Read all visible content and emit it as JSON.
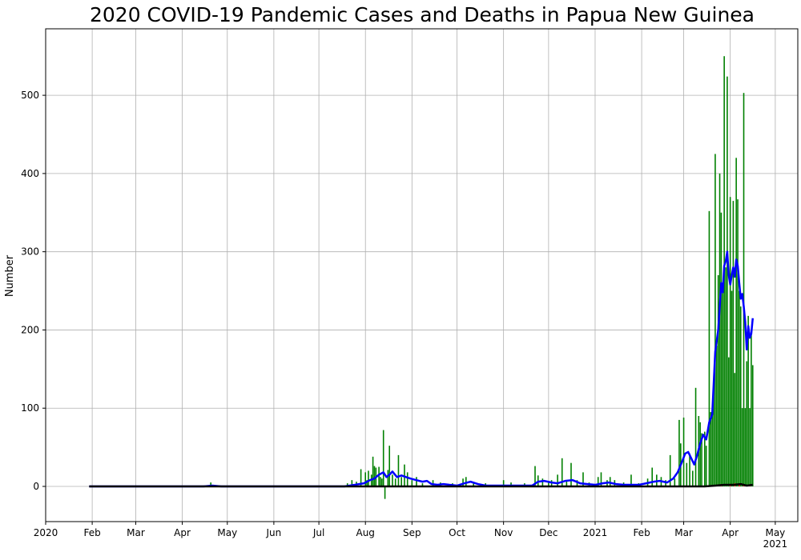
{
  "chart_data": {
    "type": "bar",
    "title": "2020 COVID-19 Pandemic Cases and Deaths in Papua New Guinea",
    "xlabel": "",
    "ylabel": "Number",
    "xlim": [
      "2020-01-01",
      "2021-05-16"
    ],
    "ylim": [
      -45,
      585
    ],
    "grid": true,
    "x_ticks": [
      {
        "date": "2020-01-01",
        "label": "2020"
      },
      {
        "date": "2020-02-01",
        "label": "Feb"
      },
      {
        "date": "2020-03-01",
        "label": "Mar"
      },
      {
        "date": "2020-04-01",
        "label": "Apr"
      },
      {
        "date": "2020-05-01",
        "label": "May"
      },
      {
        "date": "2020-06-01",
        "label": "Jun"
      },
      {
        "date": "2020-07-01",
        "label": "Jul"
      },
      {
        "date": "2020-08-01",
        "label": "Aug"
      },
      {
        "date": "2020-09-01",
        "label": "Sep"
      },
      {
        "date": "2020-10-01",
        "label": "Oct"
      },
      {
        "date": "2020-11-01",
        "label": "Nov"
      },
      {
        "date": "2020-12-01",
        "label": "Dec"
      },
      {
        "date": "2021-01-01",
        "label": "2021"
      },
      {
        "date": "2021-02-01",
        "label": "Feb"
      },
      {
        "date": "2021-03-01",
        "label": "Mar"
      },
      {
        "date": "2021-04-01",
        "label": "Apr"
      },
      {
        "date": "2021-05-01",
        "label": "May",
        "sublabel": "2021"
      }
    ],
    "y_ticks": [
      0,
      100,
      200,
      300,
      400,
      500
    ],
    "series": [
      {
        "kind": "bar",
        "color": "#008000",
        "points": [
          [
            "2020-04-20",
            5
          ],
          [
            "2020-07-20",
            4
          ],
          [
            "2020-07-23",
            8
          ],
          [
            "2020-07-26",
            6
          ],
          [
            "2020-07-29",
            22
          ],
          [
            "2020-08-01",
            18
          ],
          [
            "2020-08-02",
            8
          ],
          [
            "2020-08-03",
            20
          ],
          [
            "2020-08-05",
            15
          ],
          [
            "2020-08-06",
            38
          ],
          [
            "2020-08-07",
            26
          ],
          [
            "2020-08-08",
            24
          ],
          [
            "2020-08-10",
            25
          ],
          [
            "2020-08-11",
            12
          ],
          [
            "2020-08-12",
            10
          ],
          [
            "2020-08-13",
            72
          ],
          [
            "2020-08-14",
            -16
          ],
          [
            "2020-08-16",
            21
          ],
          [
            "2020-08-17",
            52
          ],
          [
            "2020-08-19",
            15
          ],
          [
            "2020-08-21",
            10
          ],
          [
            "2020-08-23",
            40
          ],
          [
            "2020-08-25",
            12
          ],
          [
            "2020-08-27",
            28
          ],
          [
            "2020-08-29",
            18
          ],
          [
            "2020-09-01",
            8
          ],
          [
            "2020-09-04",
            12
          ],
          [
            "2020-09-08",
            4
          ],
          [
            "2020-09-15",
            8
          ],
          [
            "2020-09-20",
            5
          ],
          [
            "2020-09-28",
            4
          ],
          [
            "2020-10-05",
            10
          ],
          [
            "2020-10-07",
            12
          ],
          [
            "2020-10-12",
            5
          ],
          [
            "2020-10-20",
            4
          ],
          [
            "2020-11-01",
            8
          ],
          [
            "2020-11-06",
            5
          ],
          [
            "2020-11-15",
            4
          ],
          [
            "2020-11-22",
            26
          ],
          [
            "2020-11-24",
            14
          ],
          [
            "2020-11-27",
            10
          ],
          [
            "2020-12-01",
            6
          ],
          [
            "2020-12-03",
            8
          ],
          [
            "2020-12-07",
            15
          ],
          [
            "2020-12-10",
            36
          ],
          [
            "2020-12-13",
            8
          ],
          [
            "2020-12-16",
            30
          ],
          [
            "2020-12-20",
            8
          ],
          [
            "2020-12-24",
            18
          ],
          [
            "2020-12-28",
            5
          ],
          [
            "2021-01-03",
            12
          ],
          [
            "2021-01-05",
            18
          ],
          [
            "2021-01-09",
            8
          ],
          [
            "2021-01-11",
            12
          ],
          [
            "2021-01-14",
            8
          ],
          [
            "2021-01-20",
            5
          ],
          [
            "2021-01-25",
            15
          ],
          [
            "2021-01-30",
            4
          ],
          [
            "2021-02-05",
            10
          ],
          [
            "2021-02-08",
            24
          ],
          [
            "2021-02-11",
            15
          ],
          [
            "2021-02-14",
            12
          ],
          [
            "2021-02-17",
            8
          ],
          [
            "2021-02-20",
            40
          ],
          [
            "2021-02-23",
            10
          ],
          [
            "2021-02-26",
            85
          ],
          [
            "2021-02-27",
            55
          ],
          [
            "2021-03-01",
            88
          ],
          [
            "2021-03-03",
            30
          ],
          [
            "2021-03-05",
            42
          ],
          [
            "2021-03-07",
            20
          ],
          [
            "2021-03-09",
            126
          ],
          [
            "2021-03-11",
            90
          ],
          [
            "2021-03-12",
            82
          ],
          [
            "2021-03-13",
            68
          ],
          [
            "2021-03-15",
            70
          ],
          [
            "2021-03-16",
            52
          ],
          [
            "2021-03-18",
            352
          ],
          [
            "2021-03-19",
            95
          ],
          [
            "2021-03-20",
            92
          ],
          [
            "2021-03-21",
            127
          ],
          [
            "2021-03-22",
            425
          ],
          [
            "2021-03-23",
            180
          ],
          [
            "2021-03-24",
            270
          ],
          [
            "2021-03-25",
            400
          ],
          [
            "2021-03-26",
            350
          ],
          [
            "2021-03-27",
            250
          ],
          [
            "2021-03-28",
            550
          ],
          [
            "2021-03-29",
            280
          ],
          [
            "2021-03-30",
            524
          ],
          [
            "2021-03-31",
            165
          ],
          [
            "2021-04-01",
            370
          ],
          [
            "2021-04-02",
            250
          ],
          [
            "2021-04-03",
            365
          ],
          [
            "2021-04-04",
            145
          ],
          [
            "2021-04-05",
            420
          ],
          [
            "2021-04-06",
            367
          ],
          [
            "2021-04-07",
            250
          ],
          [
            "2021-04-08",
            230
          ],
          [
            "2021-04-09",
            100
          ],
          [
            "2021-04-10",
            503
          ],
          [
            "2021-04-11",
            100
          ],
          [
            "2021-04-12",
            160
          ],
          [
            "2021-04-13",
            218
          ],
          [
            "2021-04-14",
            100
          ],
          [
            "2021-04-15",
            200
          ],
          [
            "2021-04-16",
            155
          ]
        ]
      },
      {
        "kind": "line",
        "color": "#0000ff",
        "points": [
          [
            "2020-01-30",
            0
          ],
          [
            "2020-04-15",
            0
          ],
          [
            "2020-04-21",
            1
          ],
          [
            "2020-04-27",
            0
          ],
          [
            "2020-07-18",
            0
          ],
          [
            "2020-07-25",
            2
          ],
          [
            "2020-07-31",
            4
          ],
          [
            "2020-08-04",
            8
          ],
          [
            "2020-08-07",
            10
          ],
          [
            "2020-08-10",
            15
          ],
          [
            "2020-08-13",
            18
          ],
          [
            "2020-08-15",
            12
          ],
          [
            "2020-08-17",
            15
          ],
          [
            "2020-08-19",
            19
          ],
          [
            "2020-08-22",
            12
          ],
          [
            "2020-08-25",
            14
          ],
          [
            "2020-08-28",
            12
          ],
          [
            "2020-08-31",
            10
          ],
          [
            "2020-09-04",
            8
          ],
          [
            "2020-09-08",
            6
          ],
          [
            "2020-09-11",
            7
          ],
          [
            "2020-09-14",
            3
          ],
          [
            "2020-09-18",
            2
          ],
          [
            "2020-09-22",
            3
          ],
          [
            "2020-09-26",
            2
          ],
          [
            "2020-10-01",
            1
          ],
          [
            "2020-10-06",
            4
          ],
          [
            "2020-10-10",
            6
          ],
          [
            "2020-10-15",
            3
          ],
          [
            "2020-10-20",
            1
          ],
          [
            "2020-11-01",
            1
          ],
          [
            "2020-11-10",
            1
          ],
          [
            "2020-11-20",
            1
          ],
          [
            "2020-11-24",
            6
          ],
          [
            "2020-11-28",
            7
          ],
          [
            "2020-12-03",
            5
          ],
          [
            "2020-12-07",
            4
          ],
          [
            "2020-12-12",
            7
          ],
          [
            "2020-12-17",
            8
          ],
          [
            "2020-12-22",
            4
          ],
          [
            "2020-12-27",
            3
          ],
          [
            "2021-01-01",
            2
          ],
          [
            "2021-01-06",
            4
          ],
          [
            "2021-01-10",
            5
          ],
          [
            "2021-01-15",
            3
          ],
          [
            "2021-01-20",
            2
          ],
          [
            "2021-01-25",
            2
          ],
          [
            "2021-01-30",
            2
          ],
          [
            "2021-02-04",
            4
          ],
          [
            "2021-02-09",
            6
          ],
          [
            "2021-02-13",
            7
          ],
          [
            "2021-02-18",
            5
          ],
          [
            "2021-02-22",
            10
          ],
          [
            "2021-02-25",
            18
          ],
          [
            "2021-02-28",
            32
          ],
          [
            "2021-03-02",
            42
          ],
          [
            "2021-03-04",
            44
          ],
          [
            "2021-03-06",
            36
          ],
          [
            "2021-03-08",
            28
          ],
          [
            "2021-03-10",
            40
          ],
          [
            "2021-03-12",
            55
          ],
          [
            "2021-03-14",
            66
          ],
          [
            "2021-03-16",
            60
          ],
          [
            "2021-03-18",
            82
          ],
          [
            "2021-03-20",
            92
          ],
          [
            "2021-03-22",
            172
          ],
          [
            "2021-03-24",
            200
          ],
          [
            "2021-03-26",
            260
          ],
          [
            "2021-03-27",
            248
          ],
          [
            "2021-03-28",
            282
          ],
          [
            "2021-03-29",
            288
          ],
          [
            "2021-03-30",
            300
          ],
          [
            "2021-03-31",
            270
          ],
          [
            "2021-04-01",
            258
          ],
          [
            "2021-04-02",
            270
          ],
          [
            "2021-04-03",
            280
          ],
          [
            "2021-04-04",
            268
          ],
          [
            "2021-04-05",
            290
          ],
          [
            "2021-04-06",
            282
          ],
          [
            "2021-04-07",
            260
          ],
          [
            "2021-04-08",
            240
          ],
          [
            "2021-04-09",
            246
          ],
          [
            "2021-04-10",
            230
          ],
          [
            "2021-04-11",
            210
          ],
          [
            "2021-04-12",
            175
          ],
          [
            "2021-04-13",
            205
          ],
          [
            "2021-04-14",
            190
          ],
          [
            "2021-04-15",
            195
          ],
          [
            "2021-04-16",
            215
          ]
        ]
      },
      {
        "kind": "bar",
        "color": "#ff0000",
        "points": [
          [
            "2021-03-22",
            2
          ],
          [
            "2021-03-26",
            3
          ],
          [
            "2021-04-01",
            3
          ],
          [
            "2021-04-04",
            4
          ],
          [
            "2021-04-07",
            2
          ],
          [
            "2021-04-10",
            3
          ],
          [
            "2021-04-14",
            2
          ]
        ]
      },
      {
        "kind": "line",
        "color": "#000000",
        "points": [
          [
            "2020-01-30",
            0
          ],
          [
            "2021-03-15",
            0
          ],
          [
            "2021-03-22",
            1
          ],
          [
            "2021-03-28",
            2
          ],
          [
            "2021-04-03",
            2
          ],
          [
            "2021-04-08",
            3
          ],
          [
            "2021-04-12",
            1
          ],
          [
            "2021-04-16",
            2
          ]
        ]
      }
    ]
  }
}
